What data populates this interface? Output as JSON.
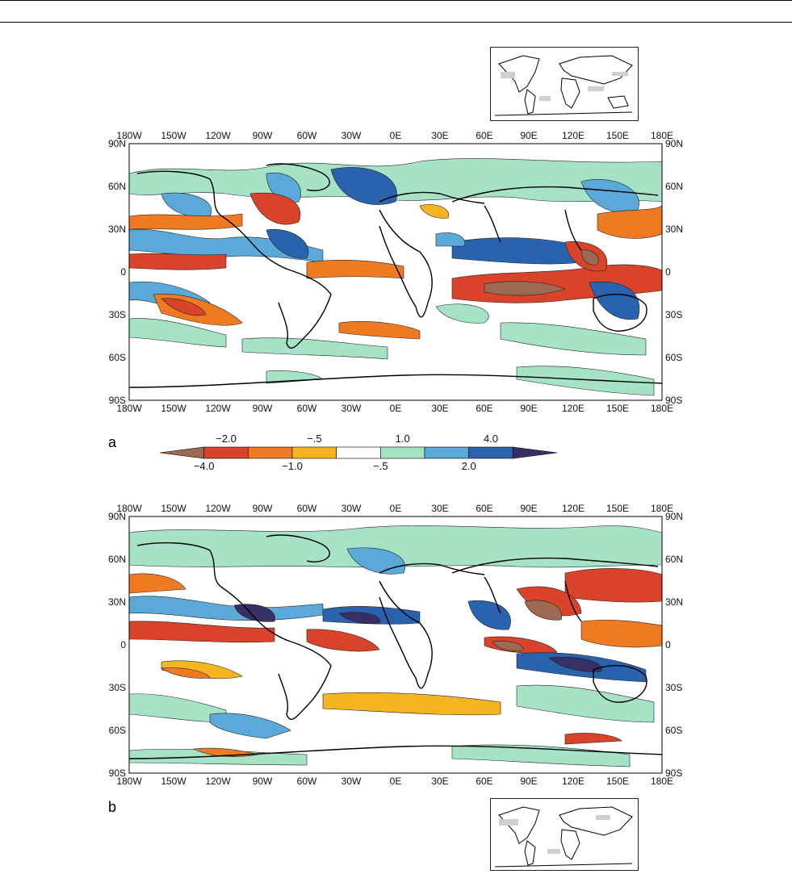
{
  "figure": {
    "panels": [
      {
        "id": "a",
        "label": "a",
        "lon_ticks": [
          "180W",
          "150W",
          "120W",
          "90W",
          "60W",
          "30W",
          "0E",
          "30E",
          "60E",
          "90E",
          "120E",
          "150E",
          "180E"
        ],
        "lat_ticks_left": [
          "90N",
          "60N",
          "30N",
          "0",
          "30S",
          "60S",
          "90S"
        ],
        "lat_ticks_right": [
          "90N",
          "60N",
          "30N",
          "0",
          "30S",
          "60S",
          "90S"
        ]
      },
      {
        "id": "b",
        "label": "b",
        "lon_ticks": [
          "180W",
          "150W",
          "120W",
          "90W",
          "60W",
          "30W",
          "0E",
          "30E",
          "60E",
          "90E",
          "120E",
          "150E",
          "180E"
        ],
        "lat_ticks_left": [
          "90N",
          "60N",
          "30N",
          "0",
          "30S",
          "60S",
          "90S"
        ],
        "lat_ticks_right": [
          "90N",
          "60N",
          "30N",
          "0",
          "30S",
          "60S",
          "90S"
        ]
      }
    ],
    "colorbar": {
      "top_labels": [
        "−2.0",
        "−.5",
        "1.0",
        "4.0"
      ],
      "bottom_labels": [
        "−4.0",
        "−1.0",
        "−.5",
        "2.0"
      ],
      "bin_colors": [
        "#9b6a50",
        "#d9432a",
        "#f07a22",
        "#f5b521",
        "#ffffff",
        "#a6e3c6",
        "#5aa9d9",
        "#2a63ad",
        "#363066"
      ]
    },
    "palette": {
      "land_line": "#000000",
      "inset_gray": "#cfcfcf"
    }
  }
}
